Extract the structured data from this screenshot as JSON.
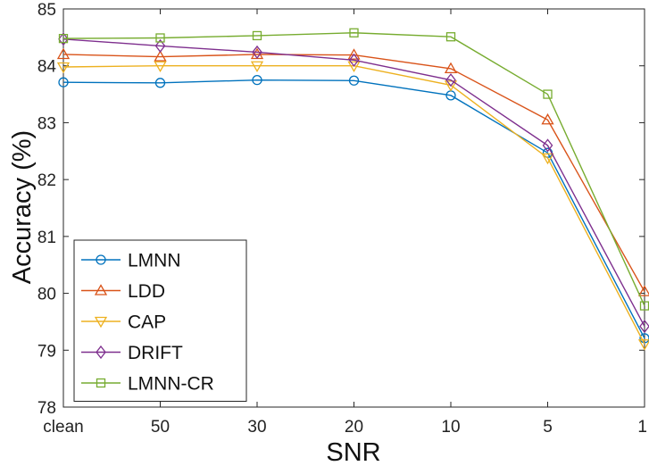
{
  "colors": {
    "lmnn": "#0072BD",
    "ldd": "#D95319",
    "cap": "#EDB120",
    "drift": "#7E2F8E",
    "lmnncr": "#77AC30",
    "axis": "#262626"
  },
  "chart_data": {
    "type": "line",
    "xlabel": "SNR",
    "ylabel": "Accuracy (%)",
    "categories": [
      "clean",
      "50",
      "30",
      "20",
      "10",
      "5",
      "1"
    ],
    "ylim": [
      78,
      85
    ],
    "yticks": [
      78,
      79,
      80,
      81,
      82,
      83,
      84,
      85
    ],
    "grid": false,
    "legend_position": "bottom-left",
    "series": [
      {
        "name": "LMNN",
        "marker": "circle",
        "color_key": "lmnn",
        "values": [
          83.71,
          83.7,
          83.75,
          83.74,
          83.48,
          82.47,
          79.21
        ]
      },
      {
        "name": "LDD",
        "marker": "triangle-up",
        "color_key": "ldd",
        "values": [
          84.2,
          84.16,
          84.2,
          84.19,
          83.95,
          83.05,
          80.03
        ]
      },
      {
        "name": "CAP",
        "marker": "triangle-down",
        "color_key": "cap",
        "values": [
          83.98,
          84.0,
          84.0,
          84.0,
          83.66,
          82.38,
          79.11
        ]
      },
      {
        "name": "DRIFT",
        "marker": "diamond",
        "color_key": "drift",
        "values": [
          84.47,
          84.35,
          84.24,
          84.1,
          83.75,
          82.6,
          79.42
        ]
      },
      {
        "name": "LMNN-CR",
        "marker": "square",
        "color_key": "lmnncr",
        "values": [
          84.48,
          84.49,
          84.53,
          84.58,
          84.51,
          83.5,
          79.78
        ]
      }
    ]
  }
}
